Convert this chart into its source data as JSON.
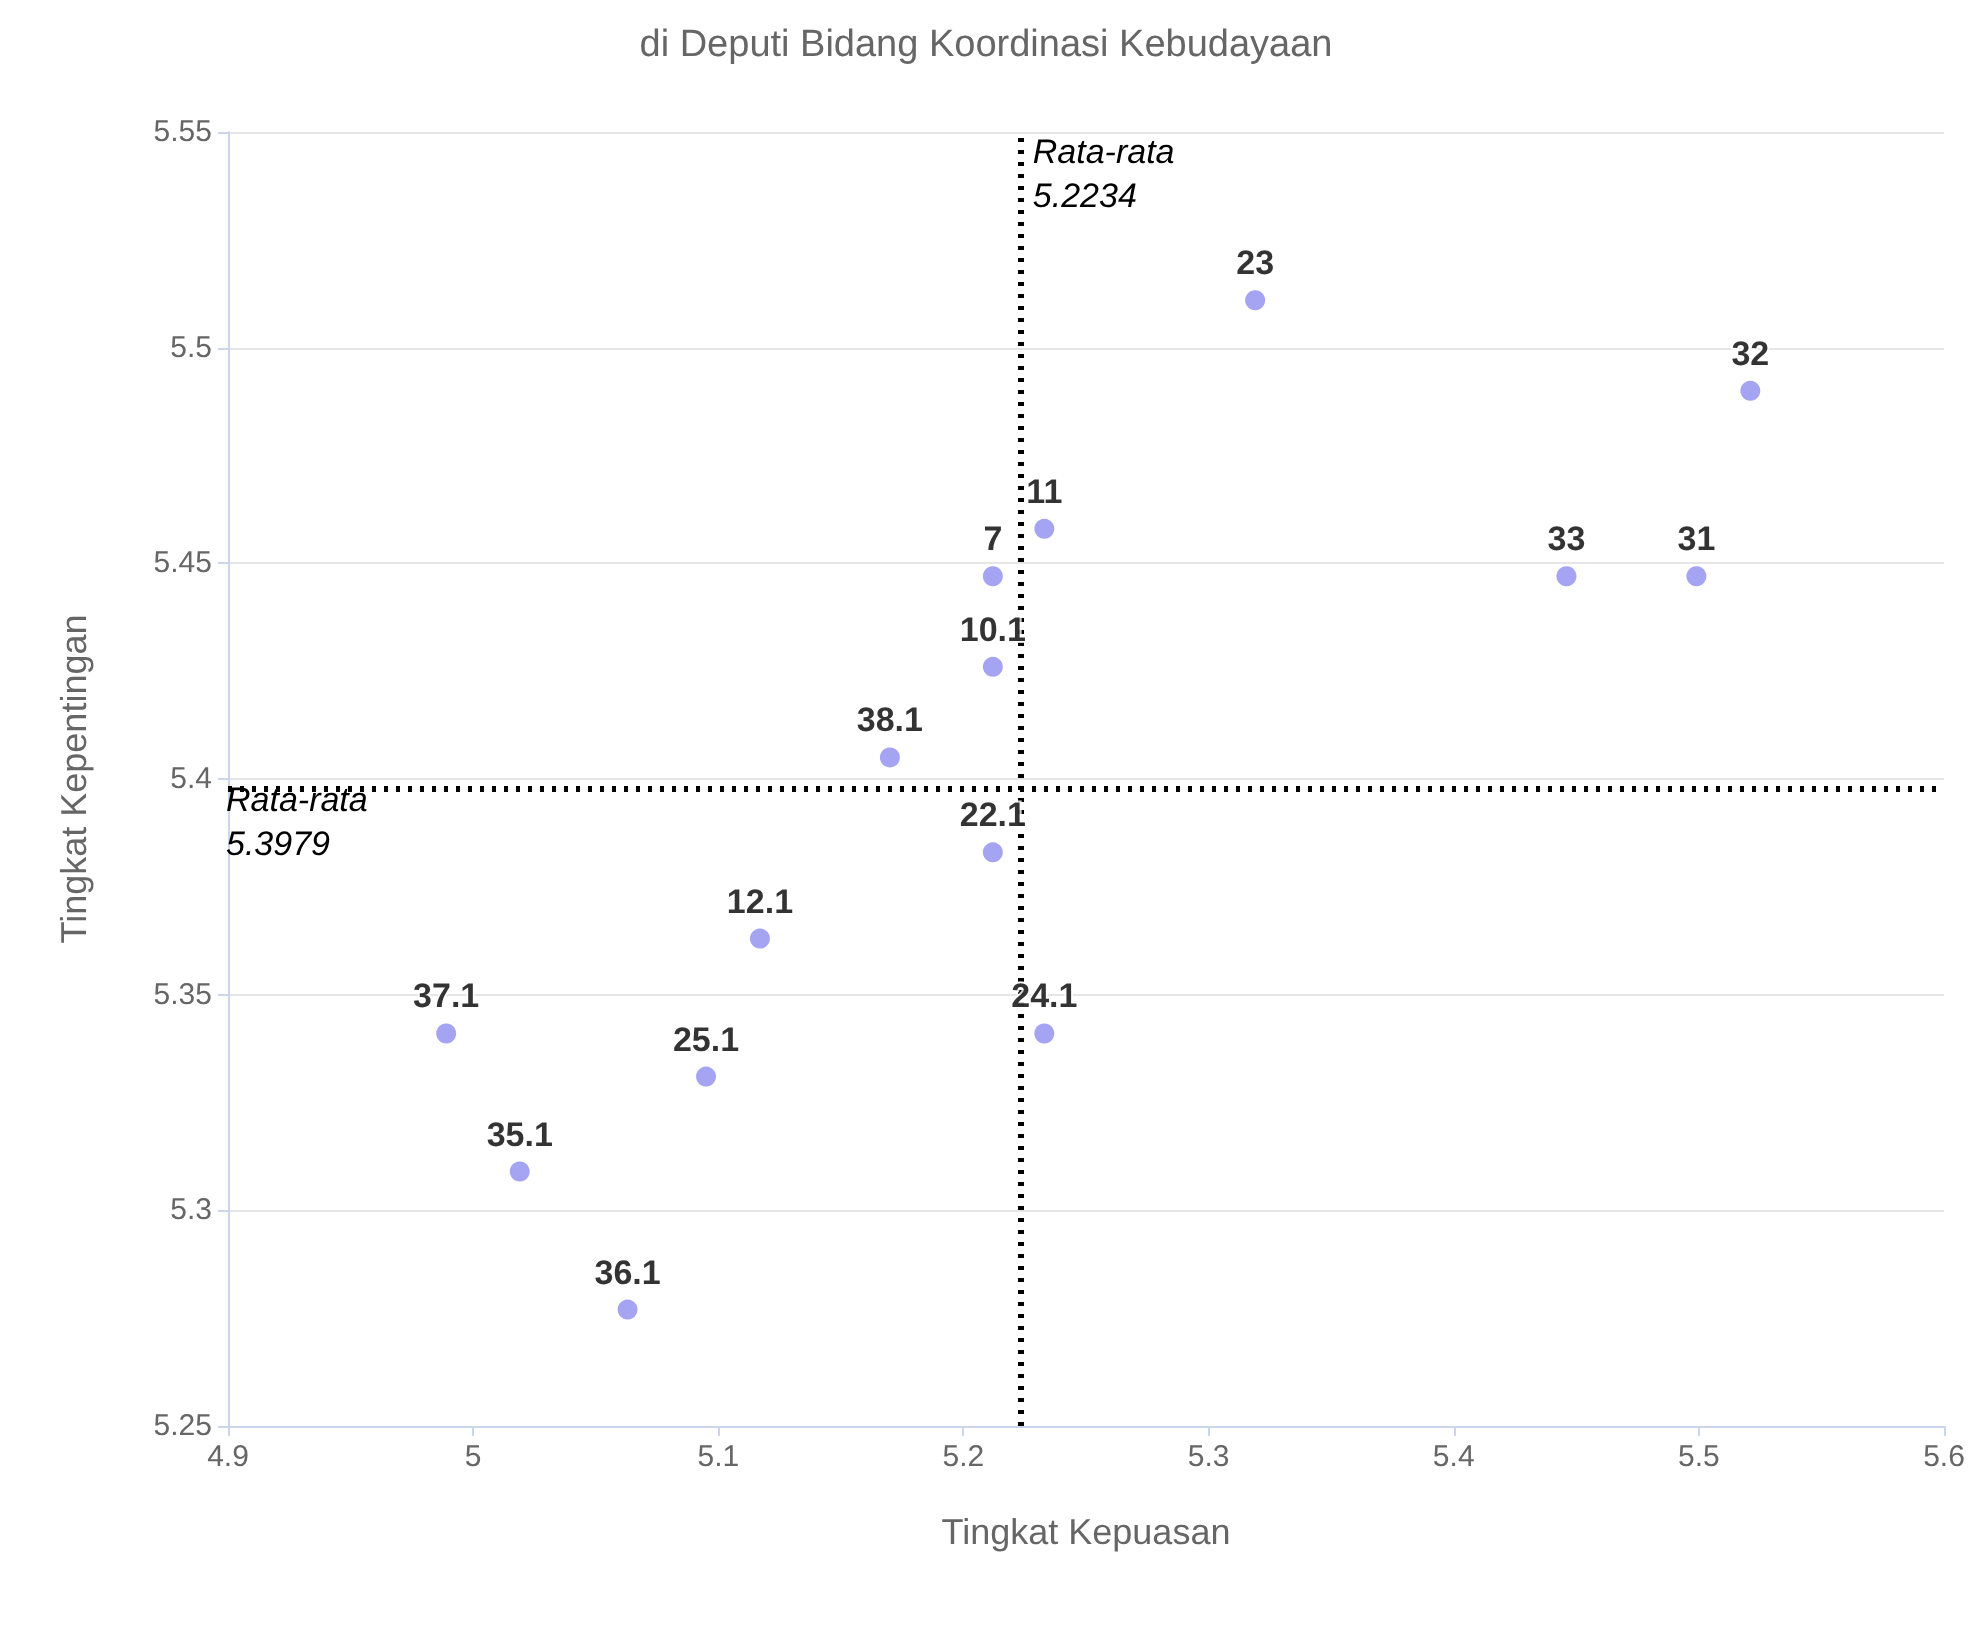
{
  "chart_data": {
    "type": "scatter",
    "title": "di Deputi Bidang Koordinasi Kebudayaan",
    "xlabel": "Tingkat Kepuasan",
    "ylabel": "Tingkat Kepentingan",
    "x": [
      5.319,
      5.521,
      5.233,
      5.212,
      5.446,
      5.499,
      5.212,
      5.17,
      5.212,
      5.117,
      4.989,
      5.233,
      5.095,
      5.019,
      5.063
    ],
    "series": [
      {
        "color": "#8d8df0",
        "values": [
          5.511,
          5.49,
          5.458,
          5.447,
          5.447,
          5.447,
          5.426,
          5.405,
          5.383,
          5.363,
          5.341,
          5.341,
          5.331,
          5.309,
          5.277
        ]
      }
    ],
    "annotations": [
      {
        "text": "23",
        "x": 5.319,
        "y": 5.511
      },
      {
        "text": "32",
        "x": 5.521,
        "y": 5.49
      },
      {
        "text": "11",
        "x": 5.233,
        "y": 5.458
      },
      {
        "text": "7",
        "x": 5.212,
        "y": 5.447
      },
      {
        "text": "33",
        "x": 5.446,
        "y": 5.447
      },
      {
        "text": "31",
        "x": 5.499,
        "y": 5.447
      },
      {
        "text": "10.1",
        "x": 5.212,
        "y": 5.426
      },
      {
        "text": "38.1",
        "x": 5.17,
        "y": 5.405
      },
      {
        "text": "22.1",
        "x": 5.212,
        "y": 5.383
      },
      {
        "text": "12.1",
        "x": 5.117,
        "y": 5.363
      },
      {
        "text": "37.1",
        "x": 4.989,
        "y": 5.341
      },
      {
        "text": "24.1",
        "x": 5.233,
        "y": 5.341
      },
      {
        "text": "25.1",
        "x": 5.095,
        "y": 5.331
      },
      {
        "text": "35.1",
        "x": 5.019,
        "y": 5.309
      },
      {
        "text": "36.1",
        "x": 5.063,
        "y": 5.277
      }
    ],
    "ref_lines": [
      {
        "axis": "x",
        "value": 5.2234,
        "label": "Rata-rata\n5.2234",
        "color": "#000000",
        "line_style": "dotted"
      },
      {
        "axis": "y",
        "value": 5.3979,
        "label": "Rata-rata\n5.3979",
        "color": "#000000",
        "line_style": "dotted"
      }
    ],
    "xlim": [
      4.9,
      5.6
    ],
    "xticks": [
      4.9,
      5,
      5.1,
      5.2,
      5.3,
      5.4,
      5.5,
      5.6
    ],
    "ylim": [
      5.25,
      5.55
    ],
    "yticks": [
      5.25,
      5.3,
      5.35,
      5.4,
      5.45,
      5.5,
      5.55
    ],
    "grid": "y",
    "marker": "circle"
  }
}
